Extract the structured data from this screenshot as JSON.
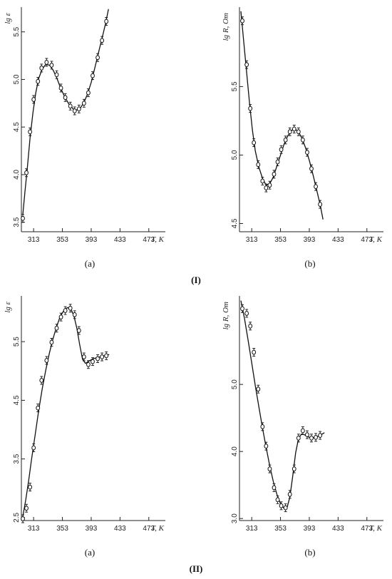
{
  "captions": {
    "group1": "(I)",
    "group2": "(II)"
  },
  "chart_data": [
    {
      "id": "I-a",
      "type": "line",
      "panel_label": "(a)",
      "ylabel": "lg ε",
      "xlabel": "T, K",
      "xticks": [
        313,
        353,
        393,
        433,
        473
      ],
      "yticks": [
        3.5,
        4.0,
        4.5,
        5.0,
        5.5
      ],
      "xlim": [
        296,
        496
      ],
      "ylim": [
        3.4,
        5.76
      ],
      "points": [
        [
          298,
          3.54
        ],
        [
          303,
          4.02
        ],
        [
          308,
          4.45
        ],
        [
          313,
          4.79
        ],
        [
          319,
          4.98
        ],
        [
          324,
          5.12
        ],
        [
          331,
          5.18
        ],
        [
          338,
          5.15
        ],
        [
          345,
          5.05
        ],
        [
          351,
          4.91
        ],
        [
          357,
          4.81
        ],
        [
          364,
          4.72
        ],
        [
          370,
          4.67
        ],
        [
          376,
          4.69
        ],
        [
          383,
          4.75
        ],
        [
          389,
          4.86
        ],
        [
          395,
          5.04
        ],
        [
          402,
          5.23
        ],
        [
          408,
          5.41
        ],
        [
          414,
          5.61
        ]
      ],
      "curve": [
        [
          298,
          3.58
        ],
        [
          301,
          3.82
        ],
        [
          304,
          4.05
        ],
        [
          308,
          4.38
        ],
        [
          312,
          4.65
        ],
        [
          316,
          4.86
        ],
        [
          320,
          5.01
        ],
        [
          325,
          5.11
        ],
        [
          330,
          5.16
        ],
        [
          335,
          5.15
        ],
        [
          340,
          5.1
        ],
        [
          345,
          5.02
        ],
        [
          350,
          4.92
        ],
        [
          356,
          4.82
        ],
        [
          362,
          4.74
        ],
        [
          368,
          4.69
        ],
        [
          373,
          4.68
        ],
        [
          378,
          4.7
        ],
        [
          383,
          4.76
        ],
        [
          388,
          4.85
        ],
        [
          393,
          4.97
        ],
        [
          398,
          5.12
        ],
        [
          403,
          5.28
        ],
        [
          408,
          5.43
        ],
        [
          413,
          5.59
        ],
        [
          417,
          5.74
        ]
      ]
    },
    {
      "id": "I-b",
      "type": "line",
      "panel_label": "(b)",
      "ylabel": "lg R, Om",
      "xlabel": "T, K",
      "xticks": [
        313,
        353,
        393,
        433,
        473
      ],
      "yticks": [
        4.5,
        5.0,
        5.5
      ],
      "xlim": [
        296,
        496
      ],
      "ylim": [
        4.44,
        6.08
      ],
      "points": [
        [
          300,
          5.98
        ],
        [
          306,
          5.66
        ],
        [
          311,
          5.34
        ],
        [
          316,
          5.09
        ],
        [
          322,
          4.93
        ],
        [
          328,
          4.81
        ],
        [
          333,
          4.76
        ],
        [
          338,
          4.78
        ],
        [
          344,
          4.86
        ],
        [
          349,
          4.95
        ],
        [
          354,
          5.04
        ],
        [
          360,
          5.11
        ],
        [
          366,
          5.17
        ],
        [
          372,
          5.19
        ],
        [
          378,
          5.17
        ],
        [
          384,
          5.11
        ],
        [
          390,
          5.02
        ],
        [
          396,
          4.9
        ],
        [
          402,
          4.77
        ],
        [
          408,
          4.64
        ]
      ],
      "curve": [
        [
          298,
          6.05
        ],
        [
          302,
          5.82
        ],
        [
          306,
          5.6
        ],
        [
          310,
          5.38
        ],
        [
          314,
          5.18
        ],
        [
          318,
          5.03
        ],
        [
          323,
          4.91
        ],
        [
          328,
          4.83
        ],
        [
          333,
          4.78
        ],
        [
          338,
          4.79
        ],
        [
          343,
          4.84
        ],
        [
          348,
          4.92
        ],
        [
          353,
          5.0
        ],
        [
          358,
          5.08
        ],
        [
          363,
          5.14
        ],
        [
          368,
          5.18
        ],
        [
          373,
          5.19
        ],
        [
          378,
          5.17
        ],
        [
          383,
          5.12
        ],
        [
          388,
          5.05
        ],
        [
          393,
          4.96
        ],
        [
          398,
          4.86
        ],
        [
          403,
          4.75
        ],
        [
          408,
          4.64
        ],
        [
          412,
          4.53
        ]
      ]
    },
    {
      "id": "II-a",
      "type": "line",
      "panel_label": "(a)",
      "ylabel": "lg ε",
      "xlabel": "T, K",
      "xticks": [
        313,
        353,
        393,
        433,
        473
      ],
      "yticks": [
        2.5,
        3.5,
        4.5,
        5.5
      ],
      "xlim": [
        296,
        496
      ],
      "ylim": [
        2.45,
        6.28
      ],
      "points": [
        [
          298,
          2.48
        ],
        [
          303,
          2.66
        ],
        [
          308,
          3.02
        ],
        [
          313,
          3.69
        ],
        [
          319,
          4.37
        ],
        [
          324,
          4.84
        ],
        [
          331,
          5.18
        ],
        [
          338,
          5.49
        ],
        [
          345,
          5.73
        ],
        [
          351,
          5.92
        ],
        [
          357,
          6.03
        ],
        [
          364,
          6.07
        ],
        [
          370,
          5.96
        ],
        [
          376,
          5.69
        ],
        [
          383,
          5.24
        ],
        [
          389,
          5.11
        ],
        [
          395,
          5.16
        ],
        [
          402,
          5.21
        ],
        [
          408,
          5.24
        ],
        [
          414,
          5.26
        ]
      ],
      "curve": [
        [
          298,
          2.52
        ],
        [
          302,
          2.8
        ],
        [
          306,
          3.12
        ],
        [
          310,
          3.48
        ],
        [
          315,
          3.9
        ],
        [
          320,
          4.32
        ],
        [
          325,
          4.7
        ],
        [
          330,
          5.02
        ],
        [
          335,
          5.31
        ],
        [
          340,
          5.55
        ],
        [
          345,
          5.76
        ],
        [
          350,
          5.93
        ],
        [
          355,
          6.03
        ],
        [
          360,
          6.08
        ],
        [
          365,
          6.05
        ],
        [
          369,
          5.94
        ],
        [
          373,
          5.73
        ],
        [
          377,
          5.45
        ],
        [
          381,
          5.2
        ],
        [
          385,
          5.13
        ],
        [
          390,
          5.17
        ],
        [
          396,
          5.21
        ],
        [
          402,
          5.23
        ],
        [
          408,
          5.25
        ],
        [
          414,
          5.27
        ],
        [
          418,
          5.28
        ]
      ]
    },
    {
      "id": "II-b",
      "type": "line",
      "panel_label": "(b)",
      "ylabel": "lg R, Om",
      "xlabel": "T, K",
      "xticks": [
        313,
        353,
        393,
        433,
        473
      ],
      "yticks": [
        3.0,
        4.0,
        5.0
      ],
      "xlim": [
        296,
        496
      ],
      "ylim": [
        2.97,
        6.32
      ],
      "points": [
        [
          300,
          6.13
        ],
        [
          306,
          6.06
        ],
        [
          311,
          5.87
        ],
        [
          316,
          5.48
        ],
        [
          322,
          4.93
        ],
        [
          328,
          4.37
        ],
        [
          333,
          4.08
        ],
        [
          338,
          3.74
        ],
        [
          344,
          3.46
        ],
        [
          349,
          3.28
        ],
        [
          354,
          3.19
        ],
        [
          360,
          3.16
        ],
        [
          366,
          3.36
        ],
        [
          372,
          3.74
        ],
        [
          378,
          4.2
        ],
        [
          384,
          4.31
        ],
        [
          390,
          4.25
        ],
        [
          396,
          4.2
        ],
        [
          402,
          4.21
        ],
        [
          408,
          4.24
        ]
      ],
      "curve": [
        [
          298,
          6.25
        ],
        [
          303,
          5.98
        ],
        [
          308,
          5.66
        ],
        [
          313,
          5.32
        ],
        [
          318,
          4.98
        ],
        [
          323,
          4.66
        ],
        [
          328,
          4.35
        ],
        [
          333,
          4.06
        ],
        [
          338,
          3.79
        ],
        [
          343,
          3.55
        ],
        [
          348,
          3.36
        ],
        [
          353,
          3.22
        ],
        [
          358,
          3.15
        ],
        [
          362,
          3.16
        ],
        [
          366,
          3.32
        ],
        [
          370,
          3.63
        ],
        [
          374,
          3.98
        ],
        [
          378,
          4.19
        ],
        [
          382,
          4.26
        ],
        [
          386,
          4.25
        ],
        [
          391,
          4.22
        ],
        [
          396,
          4.2
        ],
        [
          401,
          4.21
        ],
        [
          406,
          4.23
        ],
        [
          411,
          4.26
        ],
        [
          414,
          4.28
        ]
      ]
    }
  ]
}
